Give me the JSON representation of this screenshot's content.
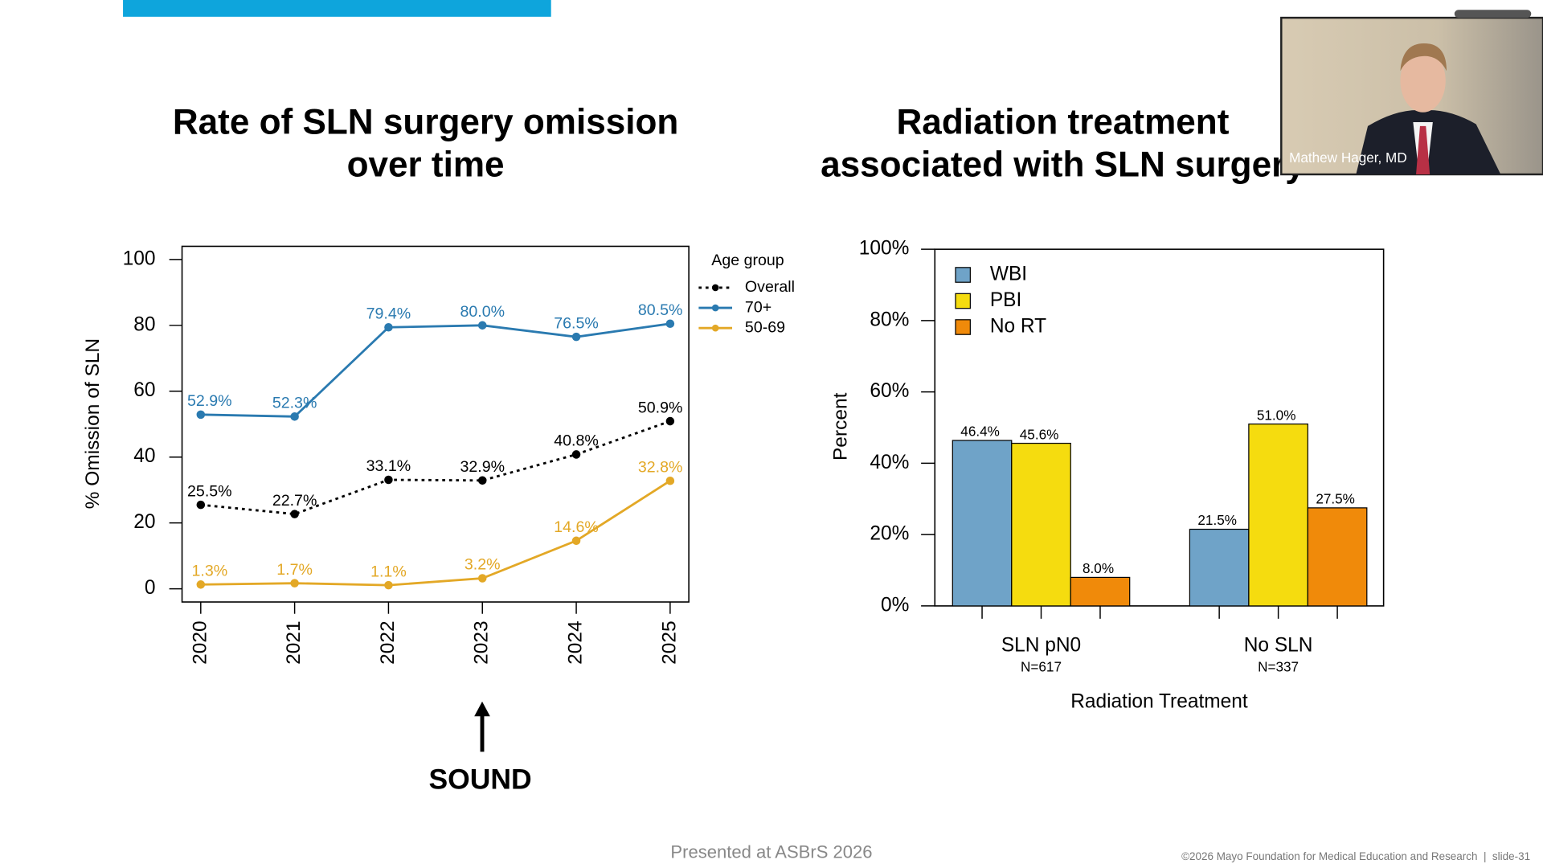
{
  "annotation": "SOUND",
  "presenter_name": "Mathew Hager, MD",
  "footer_center": "Presented at ASBrS 2026",
  "footer_right": "©2026 Mayo Foundation for Medical Education and Research  |  slide-31",
  "chart_data": [
    {
      "type": "line",
      "title": "Rate of SLN surgery omission over time",
      "ylabel": "% Omission of SLN",
      "legend_title": "Age group",
      "categories": [
        "2020",
        "2021",
        "2022",
        "2023",
        "2024",
        "2025"
      ],
      "ylim": [
        -4,
        104
      ],
      "yticks": [
        0,
        20,
        40,
        60,
        80,
        100
      ],
      "series": [
        {
          "name": "Overall",
          "color": "#000000",
          "linestyle": "dashed",
          "values": [
            25.5,
            22.7,
            33.1,
            32.9,
            40.8,
            50.9
          ],
          "value_labels": [
            "25.5%",
            "22.7%",
            "33.1%",
            "32.9%",
            "40.8%",
            "50.9%"
          ]
        },
        {
          "name": "70+",
          "color": "#2a7ab0",
          "linestyle": "solid",
          "values": [
            52.9,
            52.3,
            79.4,
            80.0,
            76.5,
            80.5
          ],
          "value_labels": [
            "52.9%",
            "52.3%",
            "79.4%",
            "80.0%",
            "76.5%",
            "80.5%"
          ]
        },
        {
          "name": "50-69",
          "color": "#e3a826",
          "linestyle": "solid",
          "values": [
            1.3,
            1.7,
            1.1,
            3.2,
            14.6,
            32.8
          ],
          "value_labels": [
            "1.3%",
            "1.7%",
            "1.1%",
            "3.2%",
            "14.6%",
            "32.8%"
          ]
        }
      ]
    },
    {
      "type": "bar",
      "title": "Radiation treatment associated with SLN surgery",
      "xlabel": "Radiation Treatment",
      "ylabel": "Percent",
      "categories": [
        "SLN pN0",
        "No SLN"
      ],
      "category_notes": [
        "N=617",
        "N=337"
      ],
      "ylim": [
        0,
        100
      ],
      "yticks": [
        {
          "value": 0,
          "label": "0%"
        },
        {
          "value": 20,
          "label": "20%"
        },
        {
          "value": 40,
          "label": "40%"
        },
        {
          "value": 60,
          "label": "60%"
        },
        {
          "value": 80,
          "label": "80%"
        },
        {
          "value": 100,
          "label": "100%"
        }
      ],
      "legend": "top-left",
      "series": [
        {
          "name": "WBI",
          "color": "#6fa3c8",
          "values": [
            46.4,
            21.5
          ],
          "value_labels": [
            "46.4%",
            "21.5%"
          ]
        },
        {
          "name": "PBI",
          "color": "#f5dc0f",
          "values": [
            45.6,
            51.0
          ],
          "value_labels": [
            "45.6%",
            "51.0%"
          ]
        },
        {
          "name": "No RT",
          "color": "#f08a0a",
          "values": [
            8.0,
            27.5
          ],
          "value_labels": [
            "8.0%",
            "27.5%"
          ]
        }
      ]
    }
  ]
}
